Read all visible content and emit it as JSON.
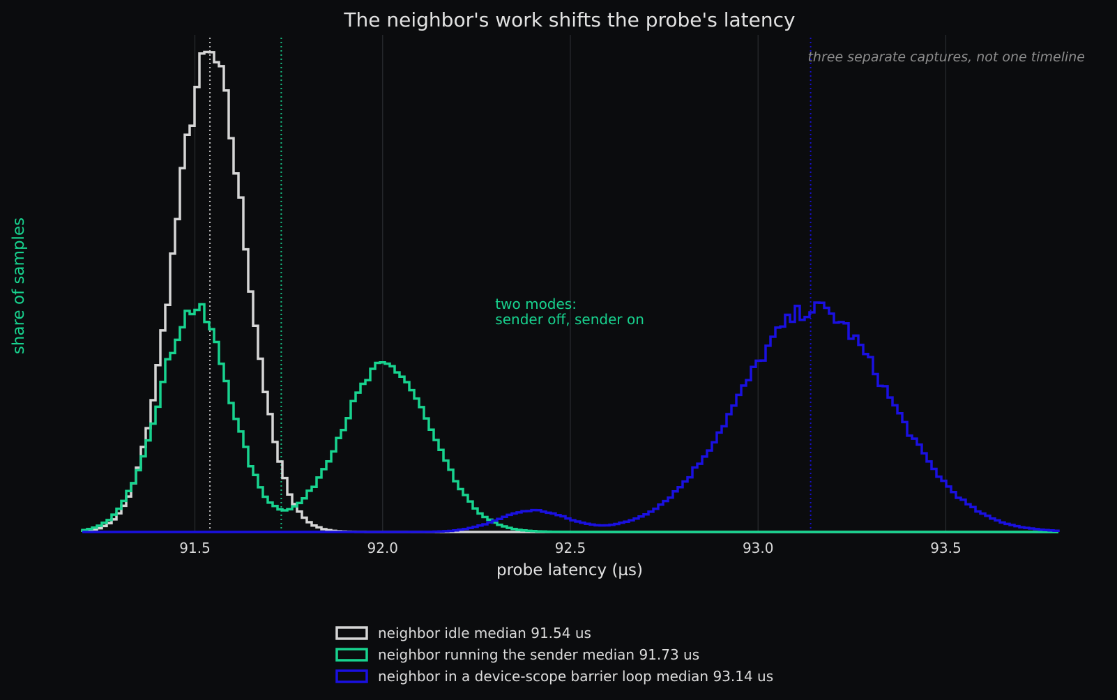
{
  "chart_data": {
    "type": "histogram",
    "title": "The neighbor's work shifts the probe's latency",
    "xlabel": "probe latency (µs)",
    "ylabel": "share of samples",
    "xlim": [
      91.2,
      93.8
    ],
    "ylim": [
      0,
      1.0
    ],
    "xticks": [
      91.5,
      92.0,
      92.5,
      93.0,
      93.5
    ],
    "xtick_labels": [
      "91.5",
      "92.0",
      "92.5",
      "93.0",
      "93.5"
    ],
    "grid": "vertical",
    "legend_position": "bottom-center",
    "note": "three separate captures, not one timeline",
    "annotation": {
      "lines": [
        "two modes:",
        "sender off, sender on"
      ],
      "x": 92.3,
      "y": 0.47,
      "color": "#18d38f"
    },
    "series": [
      {
        "name": "neighbor idle",
        "legend_label": "neighbor idle   median 91.54 us",
        "color": "#d6d6d6",
        "median": 91.54,
        "components": [
          {
            "mu": 91.54,
            "sigma": 0.095,
            "amp": 1.0
          }
        ]
      },
      {
        "name": "neighbor running the sender",
        "legend_label": "neighbor running the sender   median 91.73 us",
        "color": "#18d38f",
        "median": 91.73,
        "components": [
          {
            "mu": 91.5,
            "sigma": 0.095,
            "amp": 0.47
          },
          {
            "mu": 92.01,
            "sigma": 0.12,
            "amp": 0.35
          }
        ]
      },
      {
        "name": "neighbor in a device-scope barrier loop",
        "legend_label": "neighbor in a device-scope barrier loop   median 93.14 us",
        "color": "#1a10e0",
        "median": 93.14,
        "components": [
          {
            "mu": 92.4,
            "sigma": 0.09,
            "amp": 0.045
          },
          {
            "mu": 93.15,
            "sigma": 0.2,
            "amp": 0.47
          }
        ]
      }
    ]
  }
}
